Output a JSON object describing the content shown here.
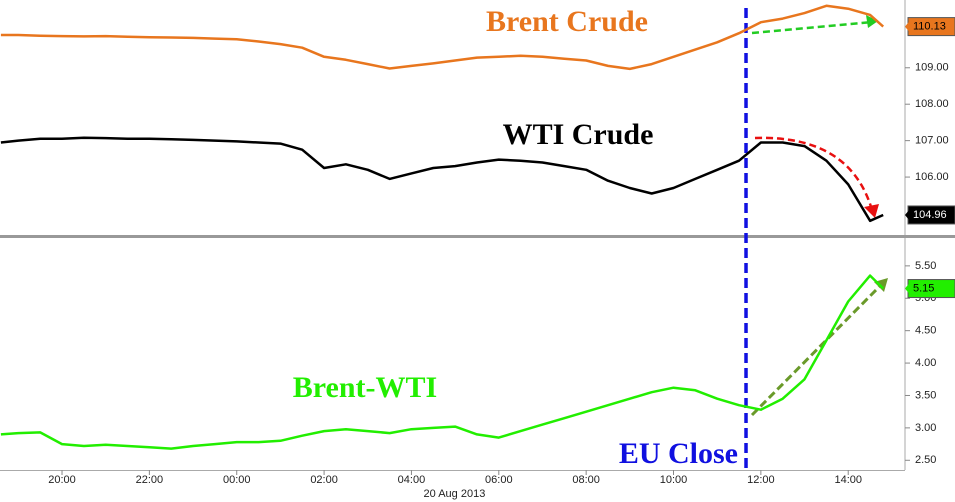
{
  "chart_data": [
    {
      "type": "line",
      "x": [
        18.6,
        19,
        19.5,
        20,
        20.5,
        21,
        21.5,
        22,
        22.5,
        23,
        23.5,
        24,
        24.5,
        25,
        25.5,
        26,
        26.5,
        27,
        27.5,
        28,
        28.5,
        29,
        29.5,
        30,
        30.5,
        31,
        31.5,
        32,
        32.5,
        33,
        33.5,
        34,
        34.5,
        35,
        35.5,
        36,
        36.5,
        37,
        37.5,
        38,
        38.5,
        38.8
      ],
      "xlim": [
        18.58,
        39.3
      ],
      "ylim": [
        104.41,
        110.86
      ],
      "yticks": [
        {
          "value": 106,
          "label": "106.00"
        },
        {
          "value": 107,
          "label": "107.00"
        },
        {
          "value": 108,
          "label": "108.00"
        },
        {
          "value": 109,
          "label": "109.00"
        }
      ],
      "series": [
        {
          "name": "Brent Crude",
          "color": "#e8761e",
          "last_label": "110.13",
          "values": [
            109.9,
            109.9,
            109.88,
            109.87,
            109.86,
            109.87,
            109.85,
            109.84,
            109.83,
            109.82,
            109.8,
            109.78,
            109.72,
            109.65,
            109.55,
            109.3,
            109.22,
            109.1,
            108.98,
            109.05,
            109.12,
            109.2,
            109.28,
            109.3,
            109.33,
            109.3,
            109.25,
            109.2,
            109.05,
            108.97,
            109.1,
            109.3,
            109.5,
            109.7,
            109.95,
            110.25,
            110.35,
            110.5,
            110.7,
            110.62,
            110.45,
            110.13
          ]
        },
        {
          "name": "WTI Crude",
          "color": "#000000",
          "last_label": "104.96",
          "values": [
            106.95,
            107.0,
            107.05,
            107.05,
            107.08,
            107.07,
            107.05,
            107.05,
            107.04,
            107.02,
            107.0,
            106.98,
            106.95,
            106.92,
            106.75,
            106.25,
            106.35,
            106.2,
            105.95,
            106.1,
            106.25,
            106.3,
            106.4,
            106.48,
            106.45,
            106.4,
            106.3,
            106.2,
            105.9,
            105.7,
            105.55,
            105.7,
            105.95,
            106.2,
            106.45,
            106.95,
            106.95,
            106.85,
            106.45,
            105.8,
            104.8,
            104.96
          ]
        }
      ],
      "annotations": [
        {
          "text": "EU Close",
          "x": 35.66
        }
      ]
    },
    {
      "type": "line",
      "x": [
        18.6,
        19,
        19.5,
        20,
        20.5,
        21,
        21.5,
        22,
        22.5,
        23,
        23.5,
        24,
        24.5,
        25,
        25.5,
        26,
        26.5,
        27,
        27.5,
        28,
        28.5,
        29,
        29.5,
        30,
        30.5,
        31,
        31.5,
        32,
        32.5,
        33,
        33.5,
        34,
        34.5,
        35,
        35.5,
        36,
        36.5,
        37,
        37.5,
        38,
        38.5,
        38.8
      ],
      "xlim": [
        18.58,
        39.3
      ],
      "ylim": [
        2.35,
        5.93
      ],
      "xticks": [
        {
          "value": 20,
          "label": "20:00"
        },
        {
          "value": 22,
          "label": "22:00"
        },
        {
          "value": 24,
          "label": "00:00"
        },
        {
          "value": 26,
          "label": "02:00"
        },
        {
          "value": 28,
          "label": "04:00"
        },
        {
          "value": 30,
          "label": "06:00"
        },
        {
          "value": 32,
          "label": "08:00"
        },
        {
          "value": 34,
          "label": "10:00"
        },
        {
          "value": 36,
          "label": "12:00"
        },
        {
          "value": 38,
          "label": "14:00"
        }
      ],
      "date_label": "20 Aug 2013",
      "yticks": [
        {
          "value": 2.5,
          "label": "2.50"
        },
        {
          "value": 3,
          "label": "3.00"
        },
        {
          "value": 3.5,
          "label": "3.50"
        },
        {
          "value": 4,
          "label": "4.00"
        },
        {
          "value": 4.5,
          "label": "4.50"
        },
        {
          "value": 5,
          "label": "5.00"
        },
        {
          "value": 5.5,
          "label": "5.50"
        }
      ],
      "series": [
        {
          "name": "Brent-WTI",
          "color": "#22ee00",
          "last_label": "5.15",
          "values": [
            2.9,
            2.92,
            2.93,
            2.75,
            2.72,
            2.74,
            2.72,
            2.7,
            2.68,
            2.72,
            2.75,
            2.78,
            2.78,
            2.8,
            2.88,
            2.95,
            2.98,
            2.95,
            2.92,
            2.98,
            3.0,
            3.02,
            2.9,
            2.85,
            2.95,
            3.05,
            3.15,
            3.25,
            3.35,
            3.45,
            3.55,
            3.62,
            3.58,
            3.45,
            3.35,
            3.28,
            3.45,
            3.75,
            4.35,
            4.95,
            5.35,
            5.15
          ]
        }
      ]
    }
  ]
}
